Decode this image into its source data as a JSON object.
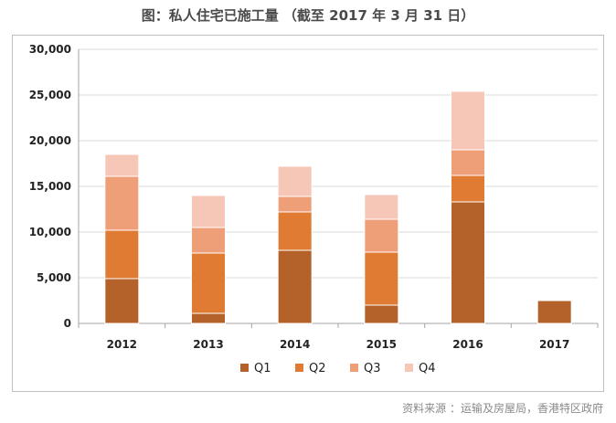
{
  "title": "图：私人住宅已施工量 （截至 2017 年 3 月 31 日）",
  "source": "资料来源 ：运输及房屋局，香港特区政府",
  "colors": {
    "Q1": "#b5622a",
    "Q2": "#e07b33",
    "Q3": "#ef9f78",
    "Q4": "#f6c6b6",
    "grid": "#d9d9d9",
    "axis": "#a6a6a6"
  },
  "chart_data": {
    "type": "bar",
    "stacked": true,
    "title": "图：私人住宅已施工量 （截至 2017 年 3 月 31 日）",
    "categories": [
      "2012",
      "2013",
      "2014",
      "2015",
      "2016",
      "2017"
    ],
    "series": [
      {
        "name": "Q1",
        "values": [
          4900,
          1100,
          8000,
          2000,
          13300,
          2500
        ]
      },
      {
        "name": "Q2",
        "values": [
          5300,
          6600,
          4200,
          5800,
          2900,
          0
        ]
      },
      {
        "name": "Q3",
        "values": [
          5900,
          2800,
          1700,
          3600,
          2800,
          0
        ]
      },
      {
        "name": "Q4",
        "values": [
          2400,
          3500,
          3300,
          2700,
          6400,
          0
        ]
      }
    ],
    "ylim": [
      0,
      30000
    ],
    "yticks": [
      0,
      5000,
      10000,
      15000,
      20000,
      25000,
      30000
    ],
    "ytick_labels": [
      "0",
      "5,000",
      "10,000",
      "15,000",
      "20,000",
      "25,000",
      "30,000"
    ],
    "xlabel": "",
    "ylabel": "",
    "grid": true,
    "legend": "bottom"
  }
}
